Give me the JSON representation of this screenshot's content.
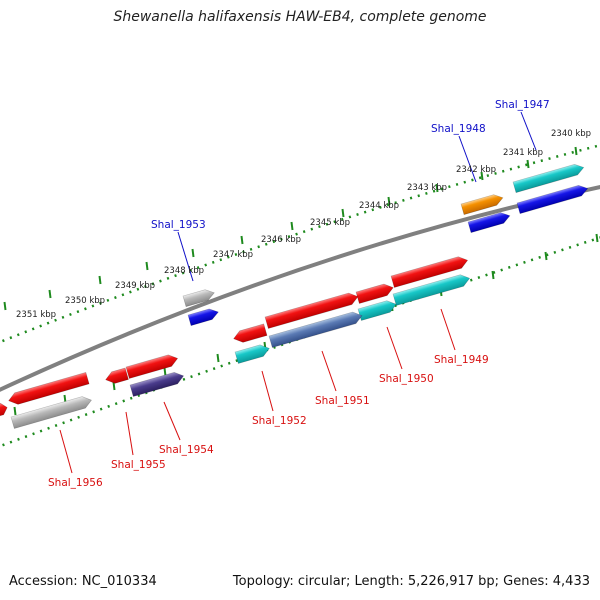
{
  "title": "Shewanella halifaxensis HAW-EB4, complete genome",
  "footer": {
    "accession": "Accession: NC_010334",
    "topology": "Topology: circular; Length: 5,226,917 bp; Genes: 4,433"
  },
  "colors": {
    "backbone": "#808080",
    "tick_track": "#1e8a1e",
    "label_top": "#1010c8",
    "label_bottom": "#d81010",
    "red": "#ee1111",
    "cyan": "#10c8c8",
    "blue": "#1414e6",
    "orange": "#f58c00",
    "gray": "#b8b8b8",
    "purple": "#4a3c8c",
    "steel": "#5a7ab4"
  },
  "ticks": [
    {
      "label": "2340 kbp"
    },
    {
      "label": "2341 kbp"
    },
    {
      "label": "2342 kbp"
    },
    {
      "label": "2343 kbp"
    },
    {
      "label": "2344 kbp"
    },
    {
      "label": "2345 kbp"
    },
    {
      "label": "2346 kbp"
    },
    {
      "label": "2347 kbp"
    },
    {
      "label": "2348 kbp"
    },
    {
      "label": "2349 kbp"
    },
    {
      "label": "2350 kbp"
    },
    {
      "label": "2351 kbp"
    }
  ],
  "top_labels": [
    "Shal_1947",
    "Shal_1948",
    "Shal_1953"
  ],
  "bottom_labels": [
    "Shal_1949",
    "Shal_1950",
    "Shal_1951",
    "Shal_1952",
    "Shal_1954",
    "Shal_1955",
    "Shal_1956"
  ]
}
